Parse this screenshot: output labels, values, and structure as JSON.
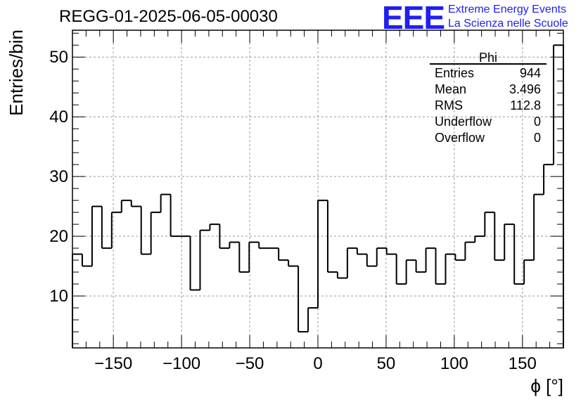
{
  "header": {
    "title": "REGG-01-2025-06-05-00030",
    "logo_text": "EEE",
    "logo_line1": "Extreme Energy Events",
    "logo_line2": "La Scienza nelle Scuole",
    "logo_color": "#1f1ff0"
  },
  "chart_data": {
    "type": "bar",
    "histogram": true,
    "xlabel": "ϕ [°]",
    "ylabel": "Entries/bin",
    "xlim": [
      -180,
      180
    ],
    "ylim": [
      1.3,
      54.5
    ],
    "bin_width": 7.2,
    "x_ticks": [
      -150,
      -100,
      -50,
      0,
      50,
      100,
      150
    ],
    "x_tick_labels": [
      "−150",
      "−100",
      "−50",
      "0",
      "50",
      "100",
      "150"
    ],
    "y_ticks": [
      10,
      20,
      30,
      40,
      50
    ],
    "y_tick_labels": [
      "10",
      "20",
      "30",
      "40",
      "50"
    ],
    "grid": true,
    "bin_edges_start": -180,
    "values": [
      17,
      15,
      25,
      18,
      24,
      26,
      25,
      17,
      24,
      27,
      20,
      20,
      11,
      21,
      22,
      18,
      19,
      14,
      19,
      18,
      18,
      16,
      15,
      4,
      8,
      26,
      14,
      13,
      18,
      17,
      15,
      18,
      17,
      12,
      16,
      14,
      18,
      12,
      17,
      16,
      19,
      20,
      24,
      16,
      22,
      12,
      16,
      27,
      32,
      52
    ],
    "stats": {
      "name": "Phi",
      "rows": [
        {
          "label": "Entries",
          "value": "944"
        },
        {
          "label": "Mean",
          "value": "3.496"
        },
        {
          "label": "RMS",
          "value": "112.8"
        },
        {
          "label": "Underflow",
          "value": "0"
        },
        {
          "label": "Overflow",
          "value": "0"
        }
      ]
    }
  }
}
